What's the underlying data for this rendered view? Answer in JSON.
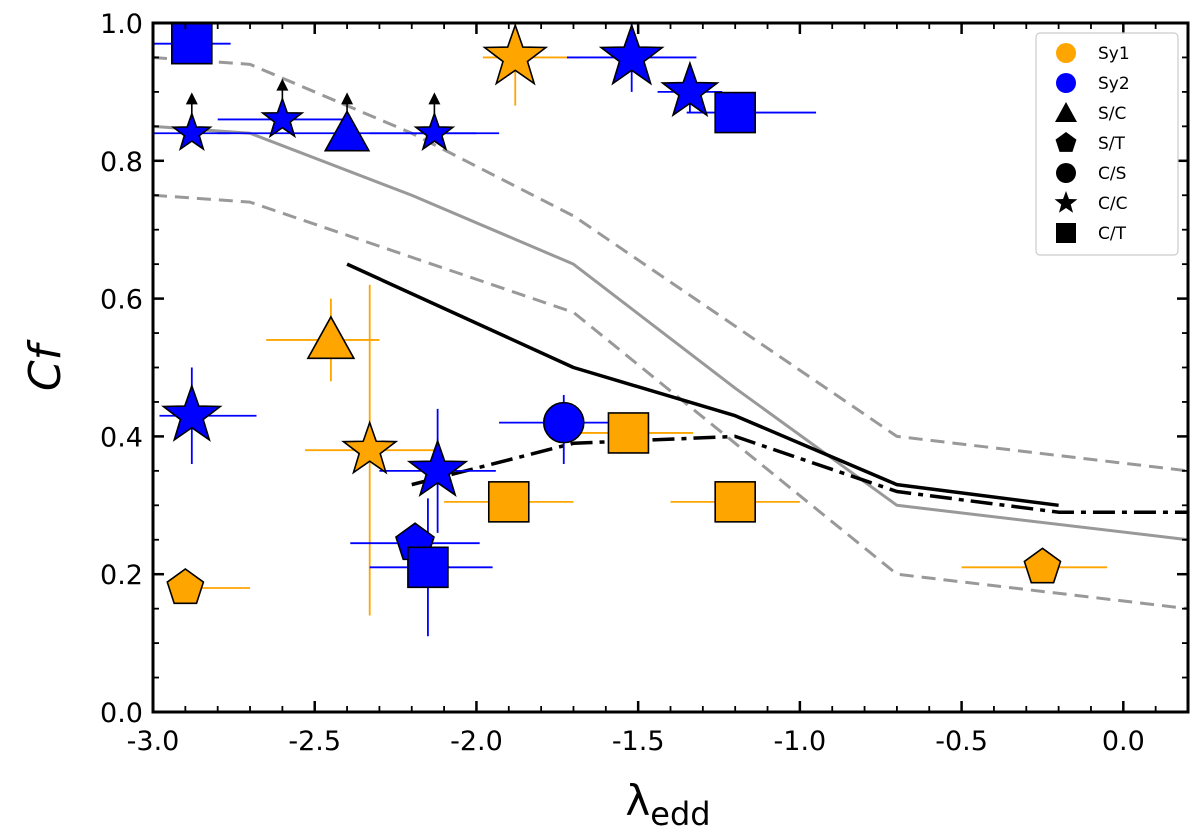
{
  "chart_data": {
    "type": "scatter",
    "xlabel": "λ",
    "xlabel_sub": "edd",
    "ylabel": "Cf",
    "xlim": [
      -3.0,
      0.2
    ],
    "ylim": [
      0.0,
      1.0
    ],
    "x_ticks": [
      -3.0,
      -2.5,
      -2.0,
      -1.5,
      -1.0,
      -0.5,
      0.0
    ],
    "x_tick_labels": [
      "-3.0",
      "-2.5",
      "-2.0",
      "-1.5",
      "-1.0",
      "-0.5",
      "0.0"
    ],
    "y_ticks": [
      0.0,
      0.2,
      0.4,
      0.6,
      0.8,
      1.0
    ],
    "y_tick_labels": [
      "0.0",
      "0.2",
      "0.4",
      "0.6",
      "0.8",
      "1.0"
    ],
    "grid": false,
    "legend_position": "top-right",
    "colors": {
      "Sy1": "#ffa500",
      "Sy2": "#0000ff"
    },
    "legend": [
      {
        "label": "Sy1",
        "marker": "circle",
        "color": "#ffa500"
      },
      {
        "label": "Sy2",
        "marker": "circle",
        "color": "#0000ff"
      },
      {
        "label": "S/C",
        "marker": "triangle",
        "color": "#000000"
      },
      {
        "label": "S/T",
        "marker": "pentagon",
        "color": "#000000"
      },
      {
        "label": "C/S",
        "marker": "circle",
        "color": "#000000"
      },
      {
        "label": "C/C",
        "marker": "star",
        "color": "#000000"
      },
      {
        "label": "C/T",
        "marker": "square",
        "color": "#000000"
      }
    ],
    "lines": [
      {
        "style": "solid",
        "color": "#999999",
        "x": [
          -3.0,
          -2.7,
          -2.2,
          -1.7,
          -1.2,
          -0.7,
          0.2
        ],
        "y": [
          0.85,
          0.84,
          0.75,
          0.65,
          0.47,
          0.3,
          0.25
        ]
      },
      {
        "style": "dashed",
        "color": "#999999",
        "x": [
          -3.0,
          -2.7,
          -2.2,
          -1.7,
          -1.2,
          -0.7,
          0.2
        ],
        "y": [
          0.95,
          0.94,
          0.84,
          0.72,
          0.56,
          0.4,
          0.35
        ]
      },
      {
        "style": "dashed",
        "color": "#999999",
        "x": [
          -3.0,
          -2.7,
          -2.2,
          -1.7,
          -1.2,
          -0.7,
          0.2
        ],
        "y": [
          0.75,
          0.74,
          0.66,
          0.58,
          0.39,
          0.2,
          0.15
        ]
      },
      {
        "style": "solid",
        "color": "#000000",
        "x": [
          -2.4,
          -1.7,
          -1.2,
          -0.7,
          -0.2
        ],
        "y": [
          0.65,
          0.5,
          0.43,
          0.33,
          0.3
        ]
      },
      {
        "style": "dashdot",
        "color": "#000000",
        "x": [
          -2.2,
          -1.7,
          -1.2,
          -0.7,
          -0.2,
          0.2
        ],
        "y": [
          0.33,
          0.39,
          0.4,
          0.32,
          0.29,
          0.29
        ]
      }
    ],
    "points": [
      {
        "x": -2.88,
        "y": 0.97,
        "type": "Sy2",
        "marker": "square",
        "xerr": [
          0.12,
          0.12
        ],
        "yerr": [
          0,
          0
        ],
        "size": 20
      },
      {
        "x": -2.88,
        "y": 0.84,
        "type": "Sy2",
        "marker": "star",
        "xerr": [
          0.12,
          0.12
        ],
        "yerr": [
          0,
          0
        ],
        "size": 17,
        "lower_limit": true
      },
      {
        "x": -2.6,
        "y": 0.86,
        "type": "Sy2",
        "marker": "star",
        "xerr": [
          0.2,
          0.2
        ],
        "yerr": [
          0,
          0
        ],
        "size": 18,
        "lower_limit": true
      },
      {
        "x": -2.4,
        "y": 0.84,
        "type": "Sy2",
        "marker": "triangle",
        "xerr": [
          0.4,
          0.4
        ],
        "yerr": [
          0,
          0
        ],
        "size": 19,
        "lower_limit": true
      },
      {
        "x": -2.13,
        "y": 0.84,
        "type": "Sy2",
        "marker": "star",
        "xerr": [
          0.2,
          0.2
        ],
        "yerr": [
          0,
          0
        ],
        "size": 17,
        "lower_limit": true
      },
      {
        "x": -1.88,
        "y": 0.95,
        "type": "Sy1",
        "marker": "star",
        "xerr": [
          0.1,
          0.2
        ],
        "yerr": [
          0.07,
          0.05
        ],
        "size": 28
      },
      {
        "x": -1.52,
        "y": 0.95,
        "type": "Sy2",
        "marker": "star",
        "xerr": [
          0.2,
          0.2
        ],
        "yerr": [
          0.05,
          0.05
        ],
        "size": 28
      },
      {
        "x": -1.34,
        "y": 0.9,
        "type": "Sy2",
        "marker": "star",
        "xerr": [
          0.1,
          0.1
        ],
        "yerr": [
          0.03,
          0.03
        ],
        "size": 25
      },
      {
        "x": -1.2,
        "y": 0.87,
        "type": "Sy2",
        "marker": "square",
        "xerr": [
          0.15,
          0.25
        ],
        "yerr": [
          0,
          0
        ],
        "size": 20
      },
      {
        "x": -2.45,
        "y": 0.54,
        "type": "Sy1",
        "marker": "triangle",
        "xerr": [
          0.2,
          0.15
        ],
        "yerr": [
          0.06,
          0.06
        ],
        "size": 20
      },
      {
        "x": -2.88,
        "y": 0.43,
        "type": "Sy2",
        "marker": "star",
        "xerr": [
          0.1,
          0.2
        ],
        "yerr": [
          0.07,
          0.07
        ],
        "size": 26
      },
      {
        "x": -2.33,
        "y": 0.38,
        "type": "Sy1",
        "marker": "star",
        "xerr": [
          0.2,
          0.2
        ],
        "yerr": [
          0.24,
          0.24
        ],
        "size": 24
      },
      {
        "x": -2.12,
        "y": 0.35,
        "type": "Sy2",
        "marker": "star",
        "xerr": [
          0.18,
          0.18
        ],
        "yerr": [
          0.09,
          0.09
        ],
        "size": 26
      },
      {
        "x": -1.73,
        "y": 0.42,
        "type": "Sy2",
        "marker": "circle",
        "xerr": [
          0.2,
          0.15
        ],
        "yerr": [
          0.06,
          0.04
        ],
        "size": 20
      },
      {
        "x": -1.53,
        "y": 0.405,
        "type": "Sy1",
        "marker": "square",
        "xerr": [
          0.15,
          0.2
        ],
        "yerr": [
          0,
          0
        ],
        "size": 20
      },
      {
        "x": -1.9,
        "y": 0.305,
        "type": "Sy1",
        "marker": "square",
        "xerr": [
          0.2,
          0.2
        ],
        "yerr": [
          0,
          0
        ],
        "size": 20
      },
      {
        "x": -1.2,
        "y": 0.305,
        "type": "Sy1",
        "marker": "square",
        "xerr": [
          0.2,
          0.2
        ],
        "yerr": [
          0,
          0
        ],
        "size": 20
      },
      {
        "x": -2.9,
        "y": 0.18,
        "type": "Sy1",
        "marker": "pentagon",
        "xerr": [
          0,
          0.2
        ],
        "yerr": [
          0,
          0
        ],
        "size": 19
      },
      {
        "x": -2.19,
        "y": 0.245,
        "type": "Sy2",
        "marker": "pentagon",
        "xerr": [
          0.2,
          0.2
        ],
        "yerr": [
          0,
          0
        ],
        "size": 20
      },
      {
        "x": -2.15,
        "y": 0.21,
        "type": "Sy2",
        "marker": "square",
        "xerr": [
          0.18,
          0.2
        ],
        "yerr": [
          0.1,
          0.1
        ],
        "size": 20
      },
      {
        "x": -0.25,
        "y": 0.21,
        "type": "Sy1",
        "marker": "pentagon",
        "xerr": [
          0.25,
          0.2
        ],
        "yerr": [
          0,
          0
        ],
        "size": 19
      }
    ]
  }
}
